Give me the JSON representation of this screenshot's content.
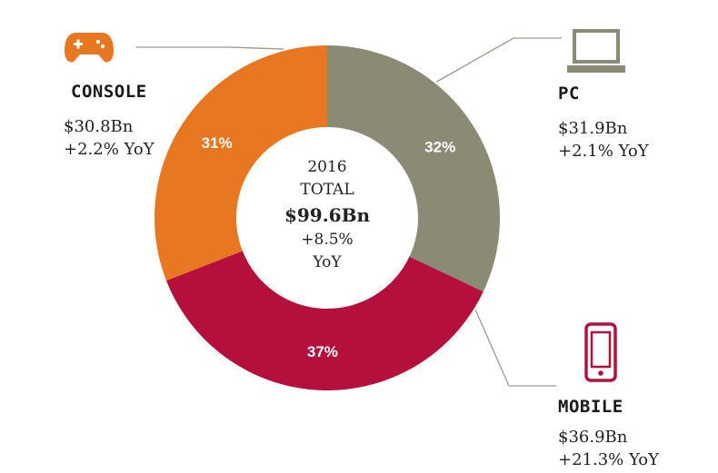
{
  "chart_data": {
    "type": "pie",
    "title": "",
    "center": {
      "line1": "2016",
      "line2": "TOTAL",
      "line3": "$99.6Bn",
      "line4": "+8.5%",
      "line5": "YoY"
    },
    "categories": [
      "PC",
      "MOBILE",
      "CONSOLE"
    ],
    "values": [
      31.9,
      36.9,
      30.8
    ],
    "percent_labels": [
      "32%",
      "37%",
      "31%"
    ],
    "amount_labels": [
      "$31.9Bn",
      "$36.9Bn",
      "$30.8Bn"
    ],
    "yoy_labels": [
      "+2.1% YoY",
      "+21.3% YoY",
      "+2.2% YoY"
    ],
    "colors": [
      "#8b8a74",
      "#b5103c",
      "#e87722"
    ],
    "icons": [
      "laptop-icon",
      "smartphone-icon",
      "gamepad-icon"
    ]
  }
}
